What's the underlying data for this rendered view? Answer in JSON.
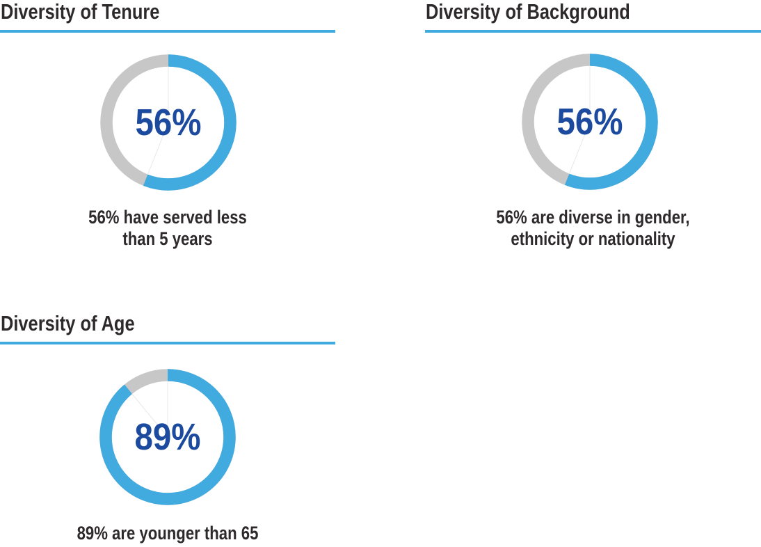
{
  "colors": {
    "accent_blue": "#41AADF",
    "track_gray": "#C7C7C7",
    "value_navy": "#1B4A9E",
    "text_dark": "#2E2A2B"
  },
  "sections": [
    {
      "title": "Diversity of Tenure",
      "percent": 56,
      "value_label": "56%",
      "caption": "56% have served less\nthan 5 years"
    },
    {
      "title": "Diversity of Background",
      "percent": 56,
      "value_label": "56%",
      "caption": "56% are diverse in gender,\nethnicity or nationality"
    },
    {
      "title": "Diversity of Age",
      "percent": 89,
      "value_label": "89%",
      "caption": "89% are younger than 65"
    }
  ],
  "chart_data": [
    {
      "type": "pie",
      "subtype": "donut",
      "title": "Diversity of Tenure",
      "categories": [
        "have served less than 5 years",
        "remainder"
      ],
      "values": [
        56,
        44
      ],
      "center_label": "56%",
      "caption": "56% have served less than 5 years",
      "slice_colors": [
        "#41AADF",
        "#C7C7C7"
      ],
      "start_angle_deg": 0,
      "direction": "clockwise",
      "legend": "none"
    },
    {
      "type": "pie",
      "subtype": "donut",
      "title": "Diversity of Background",
      "categories": [
        "are diverse in gender, ethnicity or nationality",
        "remainder"
      ],
      "values": [
        56,
        44
      ],
      "center_label": "56%",
      "caption": "56% are diverse in gender, ethnicity or nationality",
      "slice_colors": [
        "#41AADF",
        "#C7C7C7"
      ],
      "start_angle_deg": 0,
      "direction": "clockwise",
      "legend": "none"
    },
    {
      "type": "pie",
      "subtype": "donut",
      "title": "Diversity of Age",
      "categories": [
        "are younger than 65",
        "remainder"
      ],
      "values": [
        89,
        11
      ],
      "center_label": "89%",
      "caption": "89% are younger than 65",
      "slice_colors": [
        "#41AADF",
        "#C7C7C7"
      ],
      "start_angle_deg": 0,
      "direction": "clockwise",
      "legend": "none"
    }
  ]
}
